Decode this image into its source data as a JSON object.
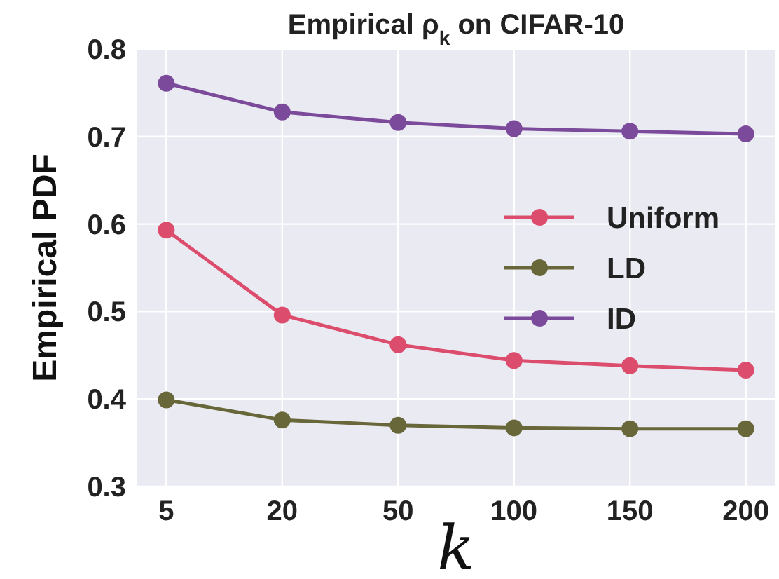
{
  "chart_data": {
    "type": "line",
    "title": "Empirical ρ$_{k}$ on CIFAR-10",
    "xlabel": "k",
    "ylabel": "Empirical PDF",
    "categories": [
      "5",
      "20",
      "50",
      "100",
      "150",
      "200"
    ],
    "series": [
      {
        "name": "Uniform",
        "color": "#dc4c6c",
        "values": [
          0.593,
          0.496,
          0.462,
          0.444,
          0.438,
          0.433
        ]
      },
      {
        "name": "LD",
        "color": "#68673a",
        "values": [
          0.399,
          0.376,
          0.37,
          0.367,
          0.366,
          0.366
        ]
      },
      {
        "name": "ID",
        "color": "#7b4a9a",
        "values": [
          0.761,
          0.728,
          0.716,
          0.709,
          0.706,
          0.703
        ]
      }
    ],
    "ylim": [
      0.3,
      0.8
    ],
    "yticks": [
      0.3,
      0.4,
      0.5,
      0.6,
      0.7,
      0.8
    ],
    "grid": true,
    "legend": "right",
    "marker": "circle",
    "line_style": "solid"
  }
}
